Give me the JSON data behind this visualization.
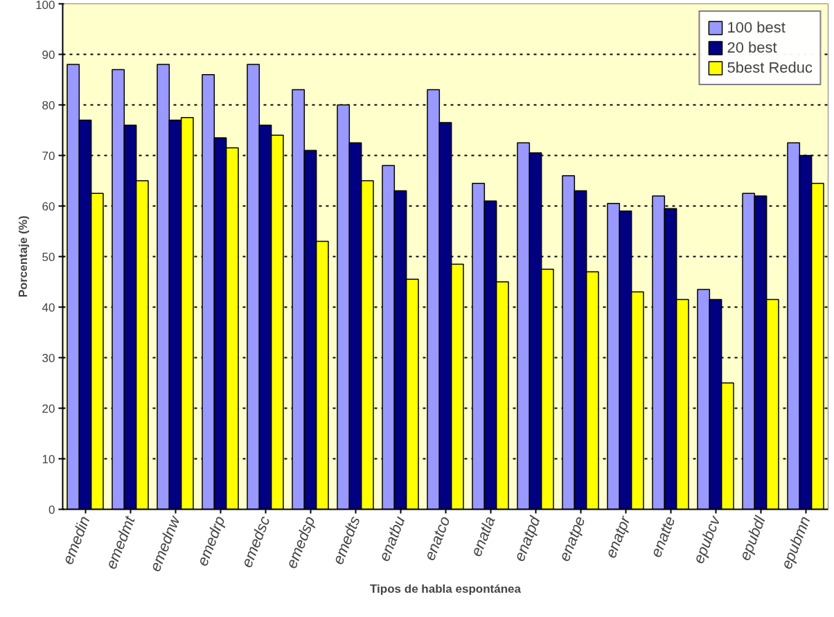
{
  "chart_data": {
    "type": "bar",
    "xlabel": "Tipos de habla espontánea",
    "ylabel": "Porcentaje (%)",
    "categories": [
      "emedin",
      "emedmt",
      "emednw",
      "emedrp",
      "emedsc",
      "emedsp",
      "emedts",
      "enatbu",
      "enatco",
      "enatla",
      "enatpd",
      "enatpe",
      "enatpr",
      "enatte",
      "epubcv",
      "epubdl",
      "epubmn"
    ],
    "series": [
      {
        "name": "100 best",
        "color": "#9999ff",
        "values": [
          88,
          87,
          88,
          86,
          88,
          83,
          80,
          68,
          83,
          64.5,
          72.5,
          66,
          60.5,
          62,
          43.5,
          62.5,
          72.5
        ]
      },
      {
        "name": "20 best",
        "color": "#000080",
        "values": [
          77,
          76,
          77,
          73.5,
          76,
          71,
          72.5,
          63,
          76.5,
          61,
          70.5,
          63,
          59,
          59.5,
          41.5,
          62,
          70
        ]
      },
      {
        "name": "5best Reduc",
        "color": "#ffff00",
        "values": [
          62.5,
          65,
          77.5,
          71.5,
          74,
          53,
          65,
          45.5,
          48.5,
          45,
          47.5,
          47,
          43,
          41.5,
          25,
          41.5,
          64.5
        ]
      }
    ],
    "ylim": [
      0,
      100
    ],
    "yticks": [
      0,
      10,
      20,
      30,
      40,
      50,
      60,
      70,
      80,
      90,
      100
    ],
    "grid": "y",
    "legend": "top right"
  }
}
